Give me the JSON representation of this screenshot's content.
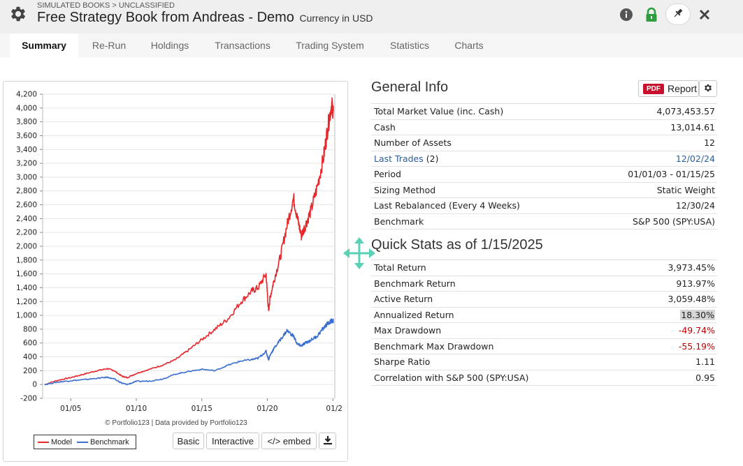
{
  "header": {
    "breadcrumb": "SIMULATED BOOKS > UNCLASSIFIED",
    "title": "Free Strategy Book from Andreas - Demo",
    "currency": "Currency in USD",
    "icons": [
      "gear-icon",
      "info-icon",
      "lock-icon",
      "pin-icon",
      "close-icon"
    ],
    "lock_color": "#2e9e3e"
  },
  "tabs": [
    {
      "label": "Summary",
      "active": true
    },
    {
      "label": "Re-Run"
    },
    {
      "label": "Holdings"
    },
    {
      "label": "Transactions"
    },
    {
      "label": "Trading System"
    },
    {
      "label": "Statistics"
    },
    {
      "label": "Charts"
    }
  ],
  "chart": {
    "credits": "© Portfolio123 | Data provided by Portfolio123",
    "legend": [
      {
        "name": "Model",
        "color": "#e8252a"
      },
      {
        "name": "Benchmark",
        "color": "#3a6fd0"
      }
    ],
    "buttons": {
      "basic": "Basic",
      "interactive": "Interactive",
      "embed": "</> embed",
      "download_icon": "download-icon"
    }
  },
  "chart_data": {
    "type": "line",
    "ylim": [
      -200,
      4200
    ],
    "yticks": [
      "-200",
      "0",
      "200",
      "400",
      "600",
      "800",
      "1,000",
      "1,200",
      "1,400",
      "1,600",
      "1,800",
      "2,000",
      "2,200",
      "2,400",
      "2,600",
      "2,800",
      "3,000",
      "3,200",
      "3,400",
      "3,600",
      "3,800",
      "4,000",
      "4,200"
    ],
    "xticks": [
      "01/05",
      "01/10",
      "01/15",
      "01/20",
      "01/2"
    ],
    "x": [
      2003.0,
      2004.0,
      2005.0,
      2006.0,
      2007.0,
      2007.8,
      2008.3,
      2008.9,
      2009.3,
      2010.0,
      2011.0,
      2012.0,
      2013.0,
      2014.0,
      2015.0,
      2016.0,
      2017.0,
      2018.0,
      2018.8,
      2019.3,
      2019.9,
      2020.1,
      2020.2,
      2020.5,
      2021.0,
      2021.5,
      2022.0,
      2022.3,
      2022.6,
      2022.9,
      2023.3,
      2023.8,
      2024.3,
      2024.6,
      2024.9,
      2025.04
    ],
    "series": [
      {
        "name": "Model",
        "values": [
          0,
          60,
          100,
          150,
          200,
          230,
          200,
          120,
          100,
          160,
          220,
          280,
          360,
          500,
          650,
          800,
          950,
          1200,
          1350,
          1400,
          1600,
          1050,
          1250,
          1500,
          1850,
          2300,
          2700,
          2400,
          2150,
          2300,
          2500,
          2850,
          3300,
          3700,
          4050,
          3950
        ]
      },
      {
        "name": "Benchmark",
        "values": [
          0,
          35,
          55,
          70,
          90,
          105,
          80,
          20,
          0,
          45,
          50,
          80,
          150,
          190,
          220,
          200,
          280,
          340,
          360,
          380,
          480,
          360,
          420,
          520,
          650,
          780,
          700,
          580,
          560,
          600,
          640,
          700,
          820,
          880,
          920,
          914
        ]
      }
    ]
  },
  "general_info": {
    "title": "General Info",
    "report_badge": "PDF",
    "report_label": "Report",
    "rows": [
      {
        "label": "Total Market Value (inc. Cash)",
        "value": "4,073,453.57"
      },
      {
        "label": "Cash",
        "value": "13,014.61"
      },
      {
        "label": "Number of Assets",
        "value": "12"
      },
      {
        "label": "Last Trades",
        "count": "(2)",
        "value": "12/02/24"
      },
      {
        "label": "Period",
        "value": "01/01/03 - 01/15/25"
      },
      {
        "label": "Sizing Method",
        "value": "Static Weight"
      },
      {
        "label": "Last Rebalanced (Every 4 Weeks)",
        "value": "12/30/24"
      },
      {
        "label": "Benchmark",
        "value": "S&P 500 (SPY:USA)"
      }
    ]
  },
  "quick_stats": {
    "title": "Quick Stats as of 1/15/2025",
    "rows": [
      {
        "label": "Total Return",
        "value": "3,973.45%"
      },
      {
        "label": "Benchmark Return",
        "value": "913.97%"
      },
      {
        "label": "Active Return",
        "value": "3,059.48%"
      },
      {
        "label": "Annualized Return",
        "value": "18.30%"
      },
      {
        "label": "Max Drawdown",
        "value": "-49.74%"
      },
      {
        "label": "Benchmark Max Drawdown",
        "value": "-55.19%"
      },
      {
        "label": "Sharpe Ratio",
        "value": "1.11"
      },
      {
        "label": "Correlation with S&P 500 (SPY:USA)",
        "value": "0.95"
      }
    ]
  }
}
